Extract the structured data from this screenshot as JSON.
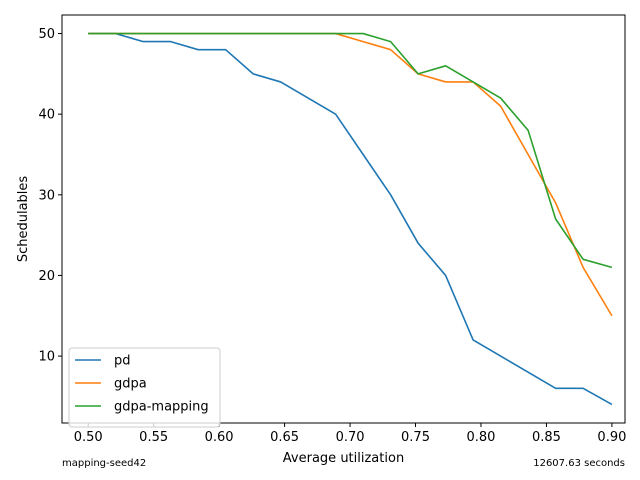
{
  "chart_data": {
    "type": "line",
    "xlabel": "Average utilization",
    "ylabel": "Schedulables",
    "xlim": [
      0.48,
      0.91
    ],
    "ylim": [
      1.7,
      52.3
    ],
    "xticks": [
      "0.50",
      "0.55",
      "0.60",
      "0.65",
      "0.70",
      "0.75",
      "0.80",
      "0.85",
      "0.90"
    ],
    "xtick_values": [
      0.5,
      0.55,
      0.6,
      0.65,
      0.7,
      0.75,
      0.8,
      0.85,
      0.9
    ],
    "yticks": [
      "10",
      "20",
      "30",
      "40",
      "50"
    ],
    "ytick_values": [
      10,
      20,
      30,
      40,
      50
    ],
    "grid": false,
    "legend_position": "lower-left",
    "x": [
      0.5,
      0.521,
      0.542,
      0.563,
      0.584,
      0.605,
      0.626,
      0.647,
      0.668,
      0.689,
      0.71,
      0.731,
      0.752,
      0.773,
      0.794,
      0.815,
      0.836,
      0.857,
      0.878,
      0.9
    ],
    "series": [
      {
        "name": "pd",
        "color": "#1f77b4",
        "values": [
          50,
          50,
          49,
          49,
          48,
          48,
          45,
          44,
          42,
          40,
          35,
          30,
          24,
          20,
          12,
          10,
          8,
          6,
          6,
          4
        ]
      },
      {
        "name": "gdpa",
        "color": "#ff7f0e",
        "values": [
          50,
          50,
          50,
          50,
          50,
          50,
          50,
          50,
          50,
          50,
          49,
          48,
          45,
          44,
          44,
          41,
          35,
          29,
          21,
          15
        ]
      },
      {
        "name": "gdpa-mapping",
        "color": "#2ca02c",
        "values": [
          50,
          50,
          50,
          50,
          50,
          50,
          50,
          50,
          50,
          50,
          50,
          49,
          45,
          46,
          44,
          42,
          38,
          27,
          22,
          21
        ]
      }
    ]
  },
  "footer": {
    "left": "mapping-seed42",
    "right": "12607.63 seconds"
  }
}
